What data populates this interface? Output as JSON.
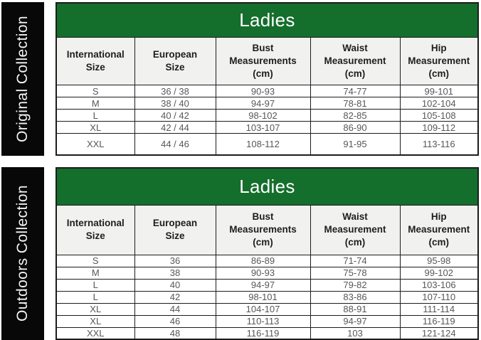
{
  "colors": {
    "header_green": "#146e2c",
    "sidebar_black": "#080808",
    "column_header_bg": "#f1f1ef",
    "border_dark": "#1c1c1c",
    "title_text": "#ffffff",
    "data_text": "#575757"
  },
  "sections": [
    {
      "collection": "Original Collection",
      "table": {
        "title": "Ladies",
        "columns": [
          "International\nSize",
          "European\nSize",
          "Bust\nMeasurements\n(cm)",
          "Waist\nMeasurement\n(cm)",
          "Hip\nMeasurement\n(cm)"
        ],
        "rows": [
          [
            "S",
            "36 / 38",
            "90-93",
            "74-77",
            "99-101"
          ],
          [
            "M",
            "38 / 40",
            "94-97",
            "78-81",
            "102-104"
          ],
          [
            "L",
            "40 / 42",
            "98-102",
            "82-85",
            "105-108"
          ],
          [
            "XL",
            "42 / 44",
            "103-107",
            "86-90",
            "109-112"
          ],
          [
            "XXL",
            "44 / 46",
            "108-112",
            "91-95",
            "113-116"
          ]
        ]
      }
    },
    {
      "collection": "Outdoors Collection",
      "table": {
        "title": "Ladies",
        "columns": [
          "International\nSize",
          "European\nSize",
          "Bust\nMeasurements\n(cm)",
          "Waist\nMeasurement\n(cm)",
          "Hip\nMeasurement\n(cm)"
        ],
        "rows": [
          [
            "S",
            "36",
            "86-89",
            "71-74",
            "95-98"
          ],
          [
            "M",
            "38",
            "90-93",
            "75-78",
            "99-102"
          ],
          [
            "L",
            "40",
            "94-97",
            "79-82",
            "103-106"
          ],
          [
            "L",
            "42",
            "98-101",
            "83-86",
            "107-110"
          ],
          [
            "XL",
            "44",
            "104-107",
            "88-91",
            "111-114"
          ],
          [
            "XL",
            "46",
            "110-113",
            "94-97",
            "116-119"
          ],
          [
            "XXL",
            "48",
            "116-119",
            "103",
            "121-124"
          ]
        ]
      }
    }
  ]
}
